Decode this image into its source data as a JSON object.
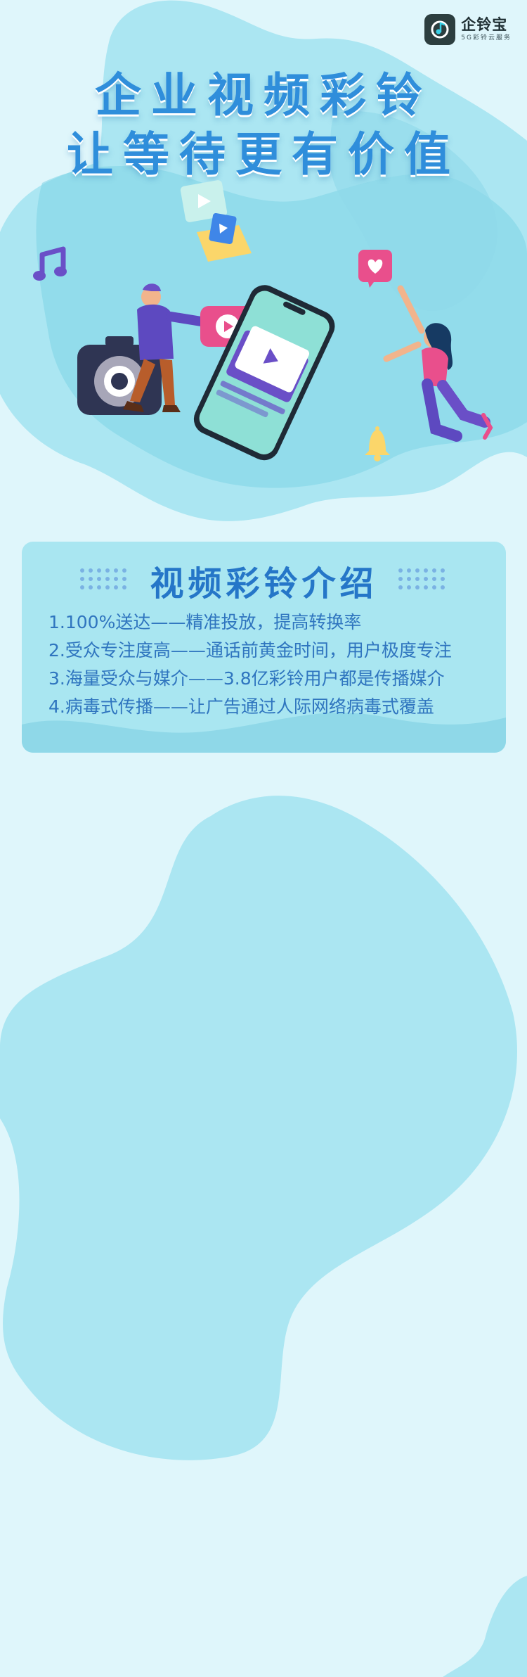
{
  "brand": {
    "name": "企铃宝",
    "tagline": "5G彩铃云服务",
    "icon": "music-note-icon"
  },
  "hero": {
    "title_line1": "企业视频彩铃",
    "title_line2": "让等待更有价值",
    "illustration": "phone-video-ringtone-illustration"
  },
  "intro": {
    "title": "视频彩铃介绍",
    "items": [
      "1.100%送达——精准投放，提高转换率",
      "2.受众专注度高——通话前黄金时间，用户极度专注",
      "3.海量受众与媒介——3.8亿彩铃用户都是传播媒介",
      "4.病毒式传播——让广告通过人际网络病毒式覆盖"
    ]
  },
  "colors": {
    "background": "#dff6fb",
    "blob": "#abe6f2",
    "title_blue": "#2f8edb",
    "text_blue": "#2f75bf"
  }
}
